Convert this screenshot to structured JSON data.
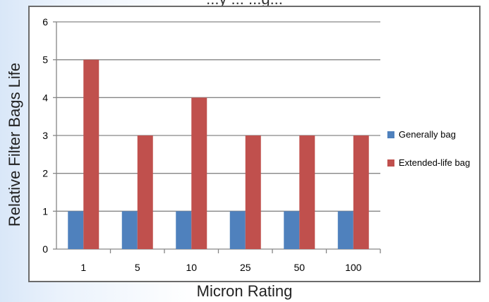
{
  "chart_data": {
    "type": "bar",
    "title": "...y ... ...g...",
    "xlabel": "Micron Rating",
    "ylabel": "Relative Filter Bags Life",
    "categories": [
      "1",
      "5",
      "10",
      "25",
      "50",
      "100"
    ],
    "series": [
      {
        "name": "Generally bag",
        "values": [
          1,
          1,
          1,
          1,
          1,
          1
        ],
        "color": "#4f81bd"
      },
      {
        "name": "Extended-life bag",
        "values": [
          5,
          3,
          4,
          3,
          3,
          3
        ],
        "color": "#c0504d"
      }
    ],
    "ylim": [
      0,
      6
    ],
    "yticks": [
      0,
      1,
      2,
      3,
      4,
      5,
      6
    ],
    "grid": true,
    "legend": "right"
  }
}
